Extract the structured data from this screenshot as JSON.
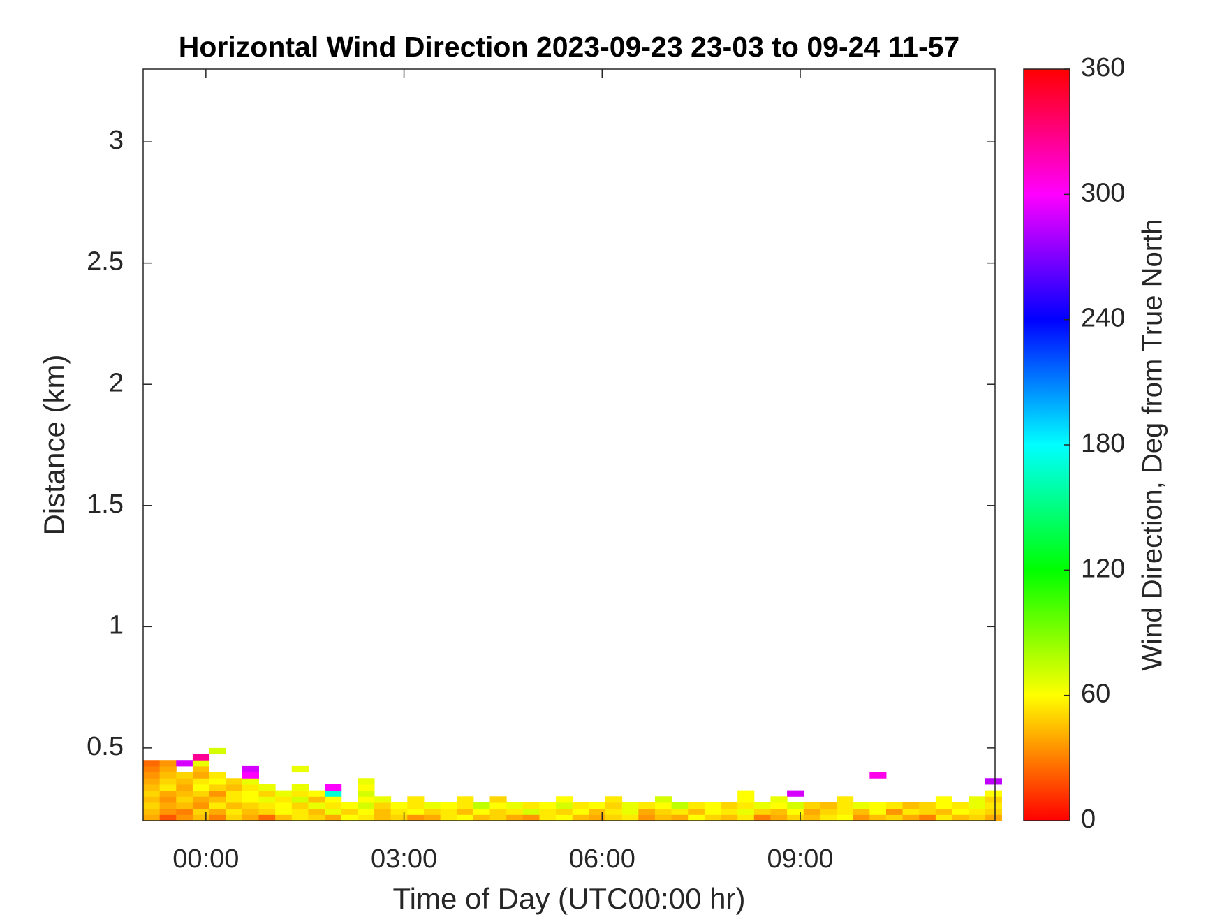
{
  "chart_data": {
    "type": "heatmap",
    "title": "Horizontal Wind Direction 2023-09-23 23-03 to 09-24 11-57",
    "x_label": "Time of Day (UTC00:00 hr)",
    "y_label": "Distance (km)",
    "colorbar_label": "Wind Direction, Deg from True North",
    "colormap": "hsv",
    "clim": [
      0,
      360
    ],
    "cticks": [
      0,
      60,
      120,
      180,
      240,
      300,
      360
    ],
    "xlim": [
      -0.95,
      11.95
    ],
    "xticks": [
      {
        "value": 0,
        "label": "00:00"
      },
      {
        "value": 3,
        "label": "03:00"
      },
      {
        "value": 6,
        "label": "06:00"
      },
      {
        "value": 9,
        "label": "09:00"
      }
    ],
    "ylim": [
      0.2,
      3.3
    ],
    "yticks": [
      0.5,
      1,
      1.5,
      2,
      2.5,
      3
    ],
    "x": [
      -0.825,
      -0.575,
      -0.325,
      -0.075,
      0.175,
      0.425,
      0.675,
      0.925,
      1.175,
      1.425,
      1.675,
      1.925,
      2.175,
      2.425,
      2.675,
      2.925,
      3.175,
      3.425,
      3.675,
      3.925,
      4.175,
      4.425,
      4.675,
      4.925,
      5.175,
      5.425,
      5.675,
      5.925,
      6.175,
      6.425,
      6.675,
      6.925,
      7.175,
      7.425,
      7.675,
      7.925,
      8.175,
      8.425,
      8.675,
      8.925,
      9.175,
      9.425,
      9.675,
      9.925,
      10.175,
      10.425,
      10.675,
      10.925,
      11.175,
      11.425,
      11.675,
      11.925
    ],
    "y": [
      0.2125,
      0.2375,
      0.2625,
      0.2875,
      0.3125,
      0.3375,
      0.3625,
      0.3875,
      0.4125,
      0.4375,
      0.4625,
      0.4875
    ],
    "z": [
      [
        40,
        20,
        35,
        45,
        30,
        50,
        40,
        25,
        45,
        55,
        50,
        40,
        60,
        55,
        45,
        50,
        35,
        40,
        55,
        60,
        45,
        50,
        40,
        35,
        55,
        60,
        45,
        40,
        50,
        55,
        35,
        45,
        40,
        60,
        50,
        45,
        55,
        30,
        40,
        50,
        45,
        55,
        60,
        35,
        45,
        50,
        40,
        30,
        55,
        45,
        50,
        40
      ],
      [
        45,
        35,
        30,
        50,
        40,
        55,
        45,
        50,
        60,
        55,
        45,
        65,
        50,
        60,
        45,
        55,
        60,
        50,
        55,
        45,
        60,
        50,
        55,
        70,
        55,
        50,
        60,
        45,
        55,
        65,
        40,
        50,
        55,
        45,
        60,
        55,
        65,
        50,
        45,
        60,
        40,
        50,
        55,
        45,
        60,
        35,
        55,
        50,
        45,
        60,
        55,
        50
      ],
      [
        50,
        40,
        45,
        35,
        55,
        45,
        50,
        55,
        60,
        50,
        65,
        55,
        60,
        70,
        50,
        60,
        55,
        65,
        60,
        55,
        75,
        60,
        65,
        55,
        60,
        70,
        55,
        60,
        50,
        65,
        55,
        60,
        75,
        55,
        60,
        50,
        55,
        65,
        60,
        70,
        50,
        45,
        55,
        65,
        60,
        55,
        45,
        50,
        60,
        55,
        65,
        55
      ],
      [
        45,
        35,
        50,
        40,
        45,
        55,
        60,
        65,
        55,
        70,
        45,
        60,
        null,
        60,
        65,
        null,
        55,
        null,
        null,
        55,
        null,
        50,
        null,
        null,
        null,
        60,
        null,
        null,
        55,
        null,
        null,
        70,
        null,
        null,
        null,
        null,
        60,
        null,
        65,
        null,
        null,
        null,
        55,
        null,
        null,
        null,
        null,
        null,
        60,
        null,
        65,
        50
      ],
      [
        50,
        40,
        45,
        50,
        35,
        55,
        60,
        50,
        65,
        55,
        60,
        170,
        null,
        70,
        null,
        null,
        null,
        null,
        null,
        null,
        null,
        null,
        null,
        null,
        null,
        null,
        null,
        null,
        null,
        null,
        null,
        null,
        null,
        null,
        null,
        null,
        60,
        null,
        null,
        290,
        null,
        null,
        null,
        null,
        null,
        null,
        null,
        null,
        null,
        null,
        null,
        60
      ],
      [
        45,
        55,
        40,
        60,
        50,
        45,
        55,
        65,
        null,
        65,
        null,
        300,
        null,
        60,
        null,
        null,
        null,
        null,
        null,
        null,
        null,
        null,
        null,
        null,
        null,
        null,
        null,
        null,
        null,
        null,
        null,
        null,
        null,
        null,
        null,
        null,
        null,
        null,
        null,
        null,
        null,
        null,
        null,
        null,
        null,
        null,
        null,
        null,
        null,
        null,
        null,
        null
      ],
      [
        40,
        50,
        45,
        55,
        60,
        50,
        65,
        null,
        null,
        null,
        null,
        null,
        null,
        65,
        null,
        null,
        null,
        null,
        null,
        null,
        null,
        null,
        null,
        null,
        null,
        null,
        null,
        null,
        null,
        null,
        null,
        null,
        null,
        null,
        null,
        null,
        null,
        null,
        null,
        null,
        null,
        null,
        null,
        null,
        null,
        null,
        null,
        null,
        null,
        null,
        null,
        285
      ],
      [
        35,
        45,
        50,
        40,
        55,
        null,
        300,
        null,
        null,
        null,
        null,
        null,
        null,
        null,
        null,
        null,
        null,
        null,
        null,
        null,
        null,
        null,
        null,
        null,
        null,
        null,
        null,
        null,
        null,
        null,
        null,
        null,
        null,
        null,
        null,
        null,
        null,
        null,
        null,
        null,
        null,
        null,
        null,
        null,
        305,
        null,
        null,
        null,
        null,
        null,
        null,
        null
      ],
      [
        30,
        40,
        null,
        45,
        null,
        null,
        290,
        null,
        null,
        65,
        null,
        null,
        null,
        null,
        null,
        null,
        null,
        null,
        null,
        null,
        null,
        null,
        null,
        null,
        null,
        null,
        null,
        null,
        null,
        null,
        null,
        null,
        null,
        null,
        null,
        null,
        null,
        null,
        null,
        null,
        null,
        null,
        null,
        null,
        null,
        null,
        null,
        null,
        null,
        null,
        null,
        null
      ],
      [
        25,
        35,
        290,
        65,
        null,
        null,
        null,
        null,
        null,
        null,
        null,
        null,
        null,
        null,
        null,
        null,
        null,
        null,
        null,
        null,
        null,
        null,
        null,
        null,
        null,
        null,
        null,
        null,
        null,
        null,
        null,
        null,
        null,
        null,
        null,
        null,
        null,
        null,
        null,
        null,
        null,
        null,
        null,
        null,
        null,
        null,
        null,
        null,
        null,
        null,
        null,
        null
      ],
      [
        null,
        null,
        null,
        325,
        null,
        null,
        null,
        null,
        null,
        null,
        null,
        null,
        null,
        null,
        null,
        null,
        null,
        null,
        null,
        null,
        null,
        null,
        null,
        null,
        null,
        null,
        null,
        null,
        null,
        null,
        null,
        null,
        null,
        null,
        null,
        null,
        null,
        null,
        null,
        null,
        null,
        null,
        null,
        null,
        null,
        null,
        null,
        null,
        null,
        null,
        null,
        null
      ],
      [
        null,
        null,
        null,
        null,
        70,
        null,
        null,
        null,
        null,
        null,
        null,
        null,
        null,
        null,
        null,
        null,
        null,
        null,
        null,
        null,
        null,
        null,
        null,
        null,
        null,
        null,
        null,
        null,
        null,
        null,
        null,
        null,
        null,
        null,
        null,
        null,
        null,
        null,
        null,
        null,
        null,
        null,
        null,
        null,
        null,
        null,
        null,
        null,
        null,
        null,
        null,
        null
      ]
    ]
  }
}
